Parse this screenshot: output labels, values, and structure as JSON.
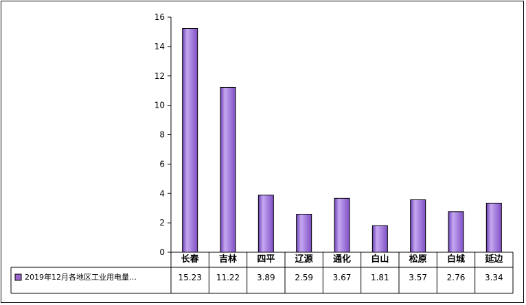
{
  "chart_data": {
    "type": "bar",
    "categories": [
      "长春",
      "吉林",
      "四平",
      "辽源",
      "通化",
      "白山",
      "松原",
      "白城",
      "延边"
    ],
    "series": [
      {
        "name": "2019年12月各地区工业用电量…",
        "values": [
          15.23,
          11.22,
          3.89,
          2.59,
          3.67,
          1.81,
          3.57,
          2.76,
          3.34
        ],
        "value_labels": [
          "15.23",
          "11.22",
          "3.89",
          "2.59",
          "3.67",
          "1.81",
          "3.57",
          "2.76",
          "3.34"
        ],
        "color": "#9966cc"
      }
    ],
    "y_ticks": [
      "0",
      "2",
      "4",
      "6",
      "8",
      "10",
      "12",
      "14",
      "16"
    ],
    "ylim": [
      0,
      16
    ],
    "grid": false,
    "legend": "data-table-left",
    "title": "",
    "xlabel": "",
    "ylabel": ""
  }
}
